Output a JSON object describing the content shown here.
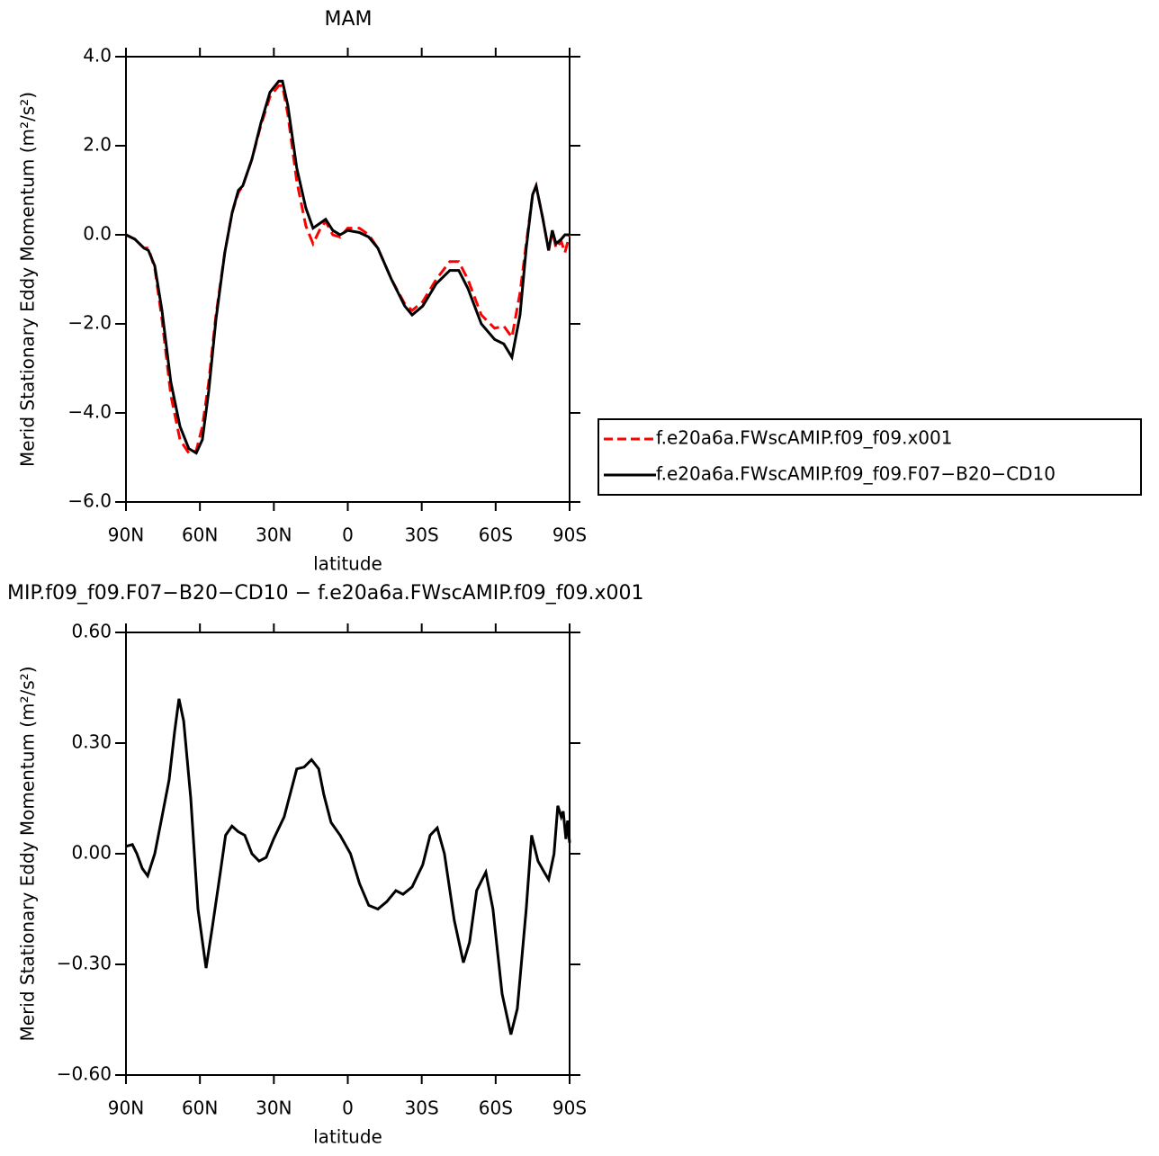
{
  "chart_data": [
    {
      "type": "line",
      "title": "MAM",
      "xlabel": "latitude",
      "ylabel": "Merid Stationary Eddy Momentum (m²/s²)",
      "x": [
        90,
        86.4,
        82.7,
        80.9,
        78.3,
        75.4,
        71.8,
        68.1,
        64.5,
        61.5,
        59.0,
        56.4,
        53.5,
        49.9,
        46.9,
        44.4,
        42.6,
        38.9,
        35.3,
        31.6,
        28.0,
        26.5,
        24.3,
        20.7,
        17.0,
        14.1,
        11.5,
        9.0,
        6.1,
        3.1,
        0,
        -4.7,
        -8.5,
        -12.2,
        -17.7,
        -23.1,
        -26.1,
        -30.4,
        -35.9,
        -41.4,
        -45.0,
        -48.7,
        -54.2,
        -59.6,
        -63.3,
        -66.6,
        -69.9,
        -72.4,
        -75.0,
        -76.4,
        -79.0,
        -81.5,
        -83.0,
        -84.5,
        -86.6,
        -88.1,
        -90
      ],
      "series": [
        {
          "name": "f.e20a6a.FWscAMIP.f09_f09.x001",
          "color": "#ff0000",
          "linestyle": "dashed",
          "values": [
            0,
            -0.1,
            -0.3,
            -0.3,
            -0.75,
            -1.9,
            -3.6,
            -4.6,
            -4.9,
            -4.85,
            -4.3,
            -3.3,
            -1.8,
            -0.4,
            0.5,
            0.95,
            1.1,
            1.7,
            2.45,
            3.1,
            3.35,
            3.35,
            2.7,
            1.2,
            0.2,
            -0.2,
            0.1,
            0.3,
            0.0,
            -0.05,
            0.15,
            0.15,
            0.0,
            -0.3,
            -1.0,
            -1.55,
            -1.7,
            -1.5,
            -1.0,
            -0.6,
            -0.6,
            -1.0,
            -1.8,
            -2.1,
            -2.05,
            -2.3,
            -1.3,
            -0.2,
            0.9,
            1.1,
            0.4,
            -0.35,
            0.1,
            -0.3,
            -0.15,
            -0.4,
            0.0
          ]
        },
        {
          "name": "f.e20a6a.FWscAMIP.f09_f09.F07−B20−CD10",
          "color": "#000000",
          "linestyle": "solid",
          "values": [
            0,
            -0.1,
            -0.3,
            -0.35,
            -0.7,
            -1.7,
            -3.3,
            -4.3,
            -4.8,
            -4.9,
            -4.6,
            -3.5,
            -1.9,
            -0.4,
            0.5,
            1.0,
            1.1,
            1.7,
            2.5,
            3.2,
            3.45,
            3.45,
            2.9,
            1.5,
            0.6,
            0.15,
            0.25,
            0.35,
            0.1,
            0.0,
            0.1,
            0.05,
            -0.05,
            -0.3,
            -1.0,
            -1.6,
            -1.8,
            -1.6,
            -1.1,
            -0.8,
            -0.8,
            -1.2,
            -2.0,
            -2.35,
            -2.45,
            -2.75,
            -1.8,
            -0.3,
            0.9,
            1.1,
            0.4,
            -0.35,
            0.1,
            -0.2,
            -0.1,
            0.0,
            0.0
          ]
        }
      ],
      "xlim": [
        90,
        -90
      ],
      "xticks": [
        {
          "value": 90,
          "label": "90N"
        },
        {
          "value": 60,
          "label": "60N"
        },
        {
          "value": 30,
          "label": "30N"
        },
        0,
        {
          "value": -30,
          "label": "30S"
        },
        {
          "value": -60,
          "label": "60S"
        },
        {
          "value": -90,
          "label": "90S"
        }
      ],
      "ylim": [
        -6,
        4
      ],
      "yticks": [
        {
          "value": -6,
          "label": "−6.0"
        },
        {
          "value": -4,
          "label": "−4.0"
        },
        {
          "value": -2,
          "label": "−2.0"
        },
        {
          "value": 0,
          "label": "0.0"
        },
        {
          "value": 2,
          "label": "2.0"
        },
        {
          "value": 4,
          "label": "4.0"
        }
      ],
      "legend": "right"
    },
    {
      "type": "line",
      "title": "MIP.f09_f09.F07−B20−CD10 − f.e20a6a.FWscAMIP.f09_f09.x001",
      "xlabel": "latitude",
      "ylabel": "Merid Stationary Eddy Momentum (m²/s²)",
      "x": [
        90,
        87.4,
        85.6,
        83.4,
        81.2,
        78.3,
        75.4,
        72.5,
        70.3,
        68.5,
        66.6,
        63.7,
        60.8,
        57.5,
        55.0,
        51.7,
        49.6,
        47.0,
        44.5,
        41.8,
        38.9,
        36.0,
        33.1,
        30.1,
        25.8,
        20.7,
        17.7,
        14.7,
        11.8,
        9.7,
        6.8,
        3.1,
        -1.1,
        -4.7,
        -8.5,
        -12.2,
        -15.8,
        -19.5,
        -22.4,
        -26.1,
        -30.4,
        -33.4,
        -36.3,
        -39.2,
        -43.2,
        -46.9,
        -49.4,
        -52.3,
        -56.0,
        -58.9,
        -62.6,
        -66.2,
        -68.8,
        -72.4,
        -74.6,
        -77.2,
        -79.7,
        -81.5,
        -83.7,
        -85.2,
        -86.6,
        -87.4,
        -88.5,
        -89.2,
        -90
      ],
      "values": [
        0.02,
        0.025,
        0.0,
        -0.04,
        -0.06,
        0.0,
        0.1,
        0.2,
        0.33,
        0.42,
        0.36,
        0.15,
        -0.15,
        -0.31,
        -0.2,
        -0.05,
        0.05,
        0.075,
        0.06,
        0.05,
        0.0,
        -0.02,
        -0.01,
        0.04,
        0.1,
        0.23,
        0.235,
        0.255,
        0.23,
        0.16,
        0.085,
        0.05,
        0.0,
        -0.08,
        -0.14,
        -0.15,
        -0.13,
        -0.1,
        -0.11,
        -0.09,
        -0.03,
        0.05,
        0.07,
        0.0,
        -0.18,
        -0.295,
        -0.24,
        -0.1,
        -0.05,
        -0.15,
        -0.38,
        -0.49,
        -0.42,
        -0.15,
        0.05,
        -0.02,
        -0.05,
        -0.07,
        0.0,
        0.13,
        0.1,
        0.115,
        0.04,
        0.09,
        0.03
      ],
      "color": "#000000",
      "xlim": [
        90,
        -90
      ],
      "xticks": [
        {
          "value": 90,
          "label": "90N"
        },
        {
          "value": 60,
          "label": "60N"
        },
        {
          "value": 30,
          "label": "30N"
        },
        0,
        {
          "value": -30,
          "label": "30S"
        },
        {
          "value": -60,
          "label": "60S"
        },
        {
          "value": -90,
          "label": "90S"
        }
      ],
      "ylim": [
        -0.6,
        0.6
      ],
      "yticks": [
        {
          "value": -0.6,
          "label": "−0.60"
        },
        {
          "value": -0.3,
          "label": "−0.30"
        },
        {
          "value": 0,
          "label": "0.00"
        },
        {
          "value": 0.3,
          "label": "0.30"
        },
        {
          "value": 0.6,
          "label": "0.60"
        }
      ]
    }
  ]
}
